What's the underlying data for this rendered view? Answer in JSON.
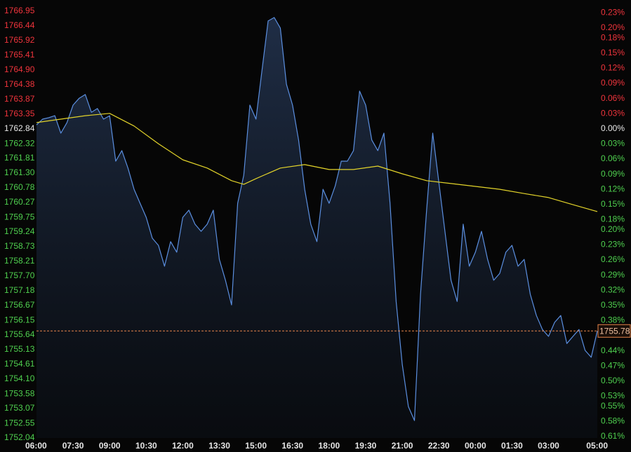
{
  "chart_data": {
    "type": "line",
    "xlim": [
      6,
      29
    ],
    "xticks": [
      {
        "value": 6,
        "label": "06:00"
      },
      {
        "value": 7.5,
        "label": "07:30"
      },
      {
        "value": 9,
        "label": "09:00"
      },
      {
        "value": 10.5,
        "label": "10:30"
      },
      {
        "value": 12,
        "label": "12:00"
      },
      {
        "value": 13.5,
        "label": "13:30"
      },
      {
        "value": 15,
        "label": "15:00"
      },
      {
        "value": 16.5,
        "label": "16:30"
      },
      {
        "value": 18,
        "label": "18:00"
      },
      {
        "value": 19.5,
        "label": "19:30"
      },
      {
        "value": 21,
        "label": "21:00"
      },
      {
        "value": 22.5,
        "label": "22:30"
      },
      {
        "value": 24,
        "label": "00:00"
      },
      {
        "value": 25.5,
        "label": "01:30"
      },
      {
        "value": 27,
        "label": "03:00"
      },
      {
        "value": 29,
        "label": "05:00"
      }
    ],
    "ylim": [
      1752.04,
      1766.95
    ],
    "yticks": [
      1766.95,
      1766.44,
      1765.92,
      1765.41,
      {
        "value": 1764.9,
        "label": "1764.90"
      },
      1764.38,
      1763.87,
      1763.35,
      1762.84,
      1762.32,
      1761.81,
      {
        "value": 1761.3,
        "label": "1761.30"
      },
      1760.78,
      1760.27,
      1759.75,
      1759.24,
      1758.73,
      1758.21,
      {
        "value": 1757.7,
        "label": "1757.70"
      },
      1757.18,
      1756.67,
      1756.15,
      1755.64,
      1755.13,
      1754.61,
      {
        "value": 1754.1,
        "label": "1754.10"
      },
      1753.58,
      1753.07,
      1752.55,
      1752.04
    ],
    "ybase": 1762.84,
    "y2lim": [
      -0.6127,
      0.2331
    ],
    "y2base": 0,
    "y2ticks": [
      {
        "value": 0.23,
        "label": "0.23%"
      },
      {
        "value": 0.2,
        "label": "0.20%"
      },
      {
        "value": 0.18,
        "label": "0.18%"
      },
      {
        "value": 0.15,
        "label": "0.15%"
      },
      {
        "value": 0.12,
        "label": "0.12%"
      },
      {
        "value": 0.09,
        "label": "0.09%"
      },
      {
        "value": 0.06,
        "label": "0.06%"
      },
      {
        "value": 0.03,
        "label": "0.03%"
      },
      {
        "value": 0,
        "label": "0.00%"
      },
      {
        "value": -0.03,
        "label": "0.03%"
      },
      {
        "value": -0.06,
        "label": "0.06%"
      },
      {
        "value": -0.09,
        "label": "0.09%"
      },
      {
        "value": -0.12,
        "label": "0.12%"
      },
      {
        "value": -0.15,
        "label": "0.15%"
      },
      {
        "value": -0.18,
        "label": "0.18%"
      },
      {
        "value": -0.2,
        "label": "0.20%"
      },
      {
        "value": -0.23,
        "label": "0.23%"
      },
      {
        "value": -0.26,
        "label": "0.26%"
      },
      {
        "value": -0.29,
        "label": "0.29%"
      },
      {
        "value": -0.32,
        "label": "0.32%"
      },
      {
        "value": -0.35,
        "label": "0.35%"
      },
      {
        "value": -0.38,
        "label": "0.38%"
      },
      {
        "value": -0.44,
        "label": "0.44%"
      },
      {
        "value": -0.47,
        "label": "0.47%"
      },
      {
        "value": -0.5,
        "label": "0.50%"
      },
      {
        "value": -0.53,
        "label": "0.53%"
      },
      {
        "value": -0.55,
        "label": "0.55%"
      },
      {
        "value": -0.58,
        "label": "0.58%"
      },
      {
        "value": -0.61,
        "label": "0.61%"
      }
    ],
    "above_color": "#f0343c",
    "below_color": "#4fd04f",
    "base_color": "#e8e8e8",
    "last_value": 1755.78,
    "last_color": "#e8854a",
    "series": [
      {
        "color": "#5b8fe0",
        "area": true,
        "x": [
          6,
          6.25,
          6.5,
          6.75,
          7,
          7.25,
          7.5,
          7.75,
          8,
          8.25,
          8.5,
          8.75,
          9,
          9.25,
          9.5,
          9.75,
          10,
          10.25,
          10.5,
          10.75,
          11,
          11.25,
          11.5,
          11.75,
          12,
          12.25,
          12.5,
          12.75,
          13,
          13.25,
          13.5,
          13.75,
          14,
          14.25,
          14.5,
          14.75,
          15,
          15.25,
          15.5,
          15.75,
          16,
          16.25,
          16.5,
          16.75,
          17,
          17.25,
          17.5,
          17.75,
          18,
          18.25,
          18.5,
          18.75,
          19,
          19.25,
          19.5,
          19.75,
          20,
          20.25,
          20.5,
          20.75,
          21,
          21.25,
          21.5,
          21.75,
          22,
          22.25,
          22.5,
          22.75,
          23,
          23.25,
          23.5,
          23.75,
          24,
          24.25,
          24.5,
          24.75,
          25,
          25.25,
          25.5,
          25.75,
          26,
          26.25,
          26.5,
          26.75,
          27,
          27.25,
          27.5,
          27.75,
          28,
          28.25,
          28.5,
          28.75,
          29
        ],
        "values": [
          1762.98,
          1763.18,
          1763.23,
          1763.3,
          1762.69,
          1763.06,
          1763.67,
          1763.91,
          1764.04,
          1763.42,
          1763.55,
          1763.18,
          1763.3,
          1761.71,
          1762.08,
          1761.47,
          1760.73,
          1760.24,
          1759.75,
          1759.02,
          1758.77,
          1758.04,
          1758.9,
          1758.53,
          1759.75,
          1760,
          1759.51,
          1759.26,
          1759.51,
          1760,
          1758.28,
          1757.55,
          1756.69,
          1760.24,
          1761.22,
          1763.67,
          1763.18,
          1764.89,
          1766.61,
          1766.73,
          1766.36,
          1764.4,
          1763.67,
          1762.45,
          1760.73,
          1759.51,
          1758.9,
          1760.73,
          1760.24,
          1760.85,
          1761.71,
          1761.71,
          1762.08,
          1764.16,
          1763.67,
          1762.45,
          1762.08,
          1762.69,
          1760.24,
          1756.81,
          1754.61,
          1753.14,
          1752.65,
          1757.06,
          1760,
          1762.69,
          1760.98,
          1759.26,
          1757.55,
          1756.81,
          1759.51,
          1758.04,
          1758.53,
          1759.26,
          1758.28,
          1757.55,
          1757.79,
          1758.53,
          1758.77,
          1758.04,
          1758.28,
          1757.06,
          1756.32,
          1755.83,
          1755.59,
          1756.08,
          1756.32,
          1755.34,
          1755.59,
          1755.83,
          1755.1,
          1754.86,
          1755.78
        ]
      },
      {
        "color": "#e3d42a",
        "area": false,
        "x": [
          6,
          7,
          8,
          9,
          10,
          11,
          12,
          13,
          14,
          14.5,
          15,
          16,
          17,
          18,
          19,
          20,
          21,
          22,
          23,
          24,
          25,
          26,
          27,
          28,
          29
        ],
        "values": [
          1763.06,
          1763.18,
          1763.3,
          1763.38,
          1762.94,
          1762.32,
          1761.76,
          1761.47,
          1761.03,
          1760.9,
          1761.1,
          1761.47,
          1761.59,
          1761.42,
          1761.42,
          1761.54,
          1761.27,
          1761.03,
          1760.93,
          1760.83,
          1760.73,
          1760.58,
          1760.44,
          1760.19,
          1759.95
        ]
      }
    ]
  }
}
